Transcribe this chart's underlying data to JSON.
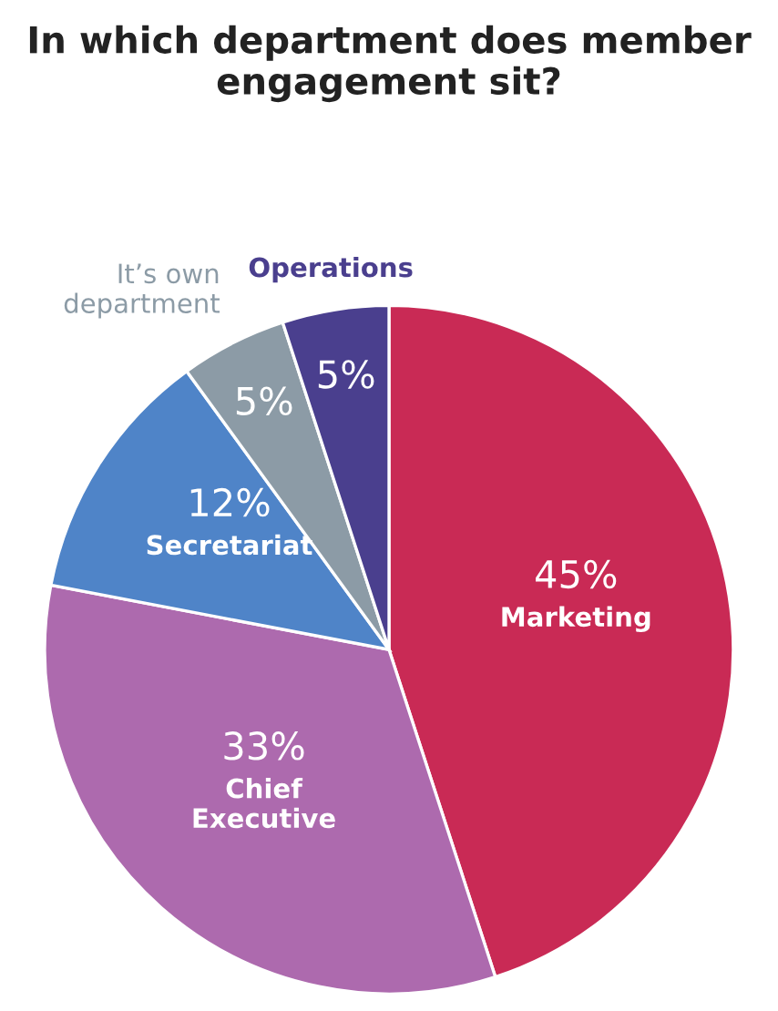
{
  "chart_data": {
    "type": "pie",
    "title": "In which department does member engagement sit?",
    "categories": [
      "Marketing",
      "Chief Executive",
      "Secretariat",
      "It’s own department",
      "Operations"
    ],
    "values": [
      45,
      33,
      12,
      5,
      5
    ],
    "value_labels": [
      "45%",
      "33%",
      "12%",
      "5%",
      "5%"
    ],
    "colors": [
      "#c92a55",
      "#ad6aae",
      "#4f84c8",
      "#8c9ba6",
      "#4a3f8e"
    ]
  }
}
